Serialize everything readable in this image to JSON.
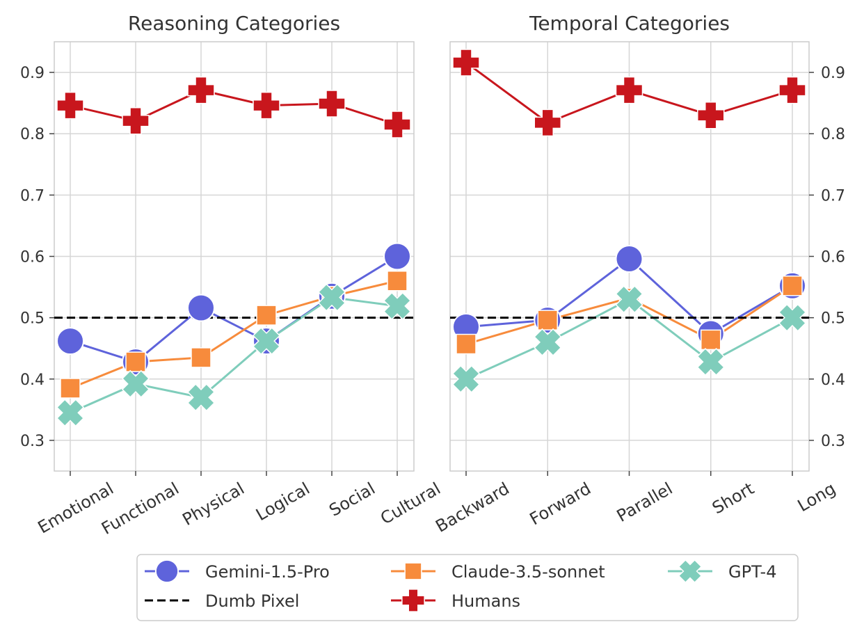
{
  "chart_data": [
    {
      "type": "line",
      "title": "Reasoning Categories",
      "categories": [
        "Emotional",
        "Functional",
        "Physical",
        "Logical",
        "Social",
        "Cultural"
      ],
      "ylim": [
        0.25,
        0.95
      ],
      "yticks": [
        "0.3",
        "0.4",
        "0.5",
        "0.6",
        "0.7",
        "0.8",
        "0.9"
      ],
      "ytick_side": "left",
      "grid": true,
      "series": [
        {
          "name": "Gemini-1.5-Pro",
          "color": "#5E63DB",
          "marker": "circle",
          "values": [
            0.462,
            0.428,
            0.516,
            0.462,
            0.535,
            0.6
          ]
        },
        {
          "name": "Claude-3.5-sonnet",
          "color": "#F78B3C",
          "marker": "square",
          "values": [
            0.385,
            0.428,
            0.435,
            0.504,
            0.535,
            0.56
          ]
        },
        {
          "name": "GPT-4",
          "color": "#7FCDBB",
          "marker": "x",
          "values": [
            0.345,
            0.392,
            0.37,
            0.462,
            0.533,
            0.519
          ]
        },
        {
          "name": "Humans",
          "color": "#C8161D",
          "marker": "plus",
          "values": [
            0.846,
            0.821,
            0.871,
            0.846,
            0.849,
            0.815
          ]
        }
      ],
      "reference_line": {
        "name": "Dumb Pixel",
        "value": 0.5,
        "color": "#000000",
        "style": "dashed"
      }
    },
    {
      "type": "line",
      "title": "Temporal Categories",
      "categories": [
        "Backward",
        "Forward",
        "Parallel",
        "Short",
        "Long"
      ],
      "ylim": [
        0.25,
        0.95
      ],
      "yticks": [
        "0.3",
        "0.4",
        "0.5",
        "0.6",
        "0.7",
        "0.8",
        "0.9"
      ],
      "ytick_side": "right",
      "grid": true,
      "series": [
        {
          "name": "Gemini-1.5-Pro",
          "color": "#5E63DB",
          "marker": "circle",
          "values": [
            0.485,
            0.496,
            0.596,
            0.474,
            0.552
          ]
        },
        {
          "name": "Claude-3.5-sonnet",
          "color": "#F78B3C",
          "marker": "square",
          "values": [
            0.457,
            0.496,
            0.532,
            0.464,
            0.552
          ]
        },
        {
          "name": "GPT-4",
          "color": "#7FCDBB",
          "marker": "x",
          "values": [
            0.4,
            0.46,
            0.53,
            0.428,
            0.5
          ]
        },
        {
          "name": "Humans",
          "color": "#C8161D",
          "marker": "plus",
          "values": [
            0.916,
            0.818,
            0.871,
            0.83,
            0.871
          ]
        }
      ],
      "reference_line": {
        "name": "Dumb Pixel",
        "value": 0.5,
        "color": "#000000",
        "style": "dashed"
      }
    }
  ],
  "legend": {
    "placement": "bottom-center",
    "items": [
      {
        "label": "Gemini-1.5-Pro",
        "color": "#5E63DB",
        "marker": "circle",
        "style": "solid"
      },
      {
        "label": "Claude-3.5-sonnet",
        "color": "#F78B3C",
        "marker": "square",
        "style": "solid"
      },
      {
        "label": "GPT-4",
        "color": "#7FCDBB",
        "marker": "x",
        "style": "solid"
      },
      {
        "label": "Dumb Pixel",
        "color": "#000000",
        "marker": "none",
        "style": "dashed"
      },
      {
        "label": "Humans",
        "color": "#C8161D",
        "marker": "plus",
        "style": "solid"
      }
    ]
  }
}
